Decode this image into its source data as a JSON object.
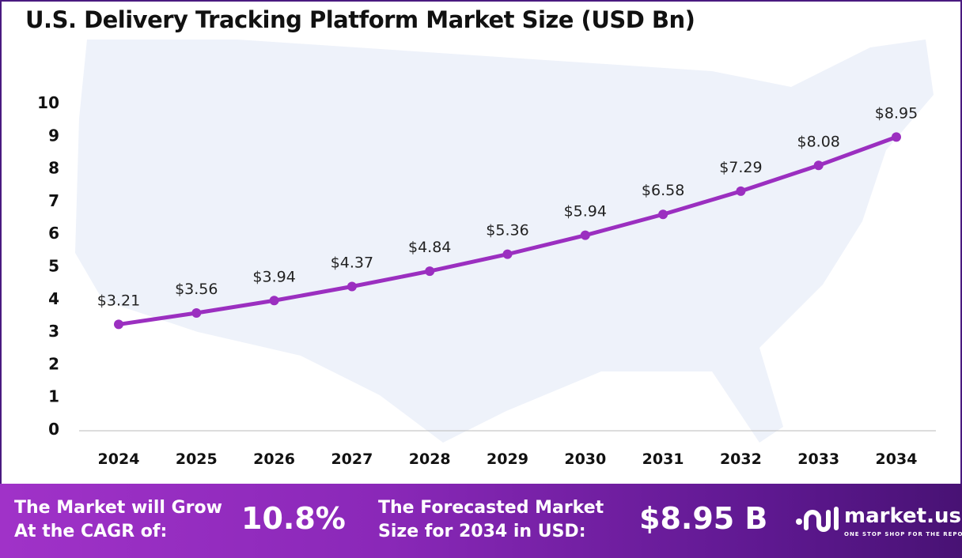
{
  "chart_data": {
    "type": "line",
    "title": "U.S. Delivery Tracking Platform Market Size (USD Bn)",
    "categories": [
      "2024",
      "2025",
      "2026",
      "2027",
      "2028",
      "2029",
      "2030",
      "2031",
      "2032",
      "2033",
      "2034"
    ],
    "values": [
      3.21,
      3.56,
      3.94,
      4.37,
      4.84,
      5.36,
      5.94,
      6.58,
      7.29,
      8.08,
      8.95
    ],
    "data_labels": [
      "$3.21",
      "$3.56",
      "$3.94",
      "$4.37",
      "$4.84",
      "$5.36",
      "$5.94",
      "$6.58",
      "$7.29",
      "$8.08",
      "$8.95"
    ],
    "yticks": [
      "0",
      "1",
      "2",
      "3",
      "4",
      "5",
      "6",
      "7",
      "8",
      "9",
      "10"
    ],
    "ylim": [
      0,
      10
    ],
    "xlabel": "",
    "ylabel": "",
    "grid": false,
    "line_color": "#9b2fc0"
  },
  "footer": {
    "cagr_label_1": "The Market will Grow",
    "cagr_label_2": "At the CAGR of:",
    "cagr_value": "10.8%",
    "forecast_label_1": "The Forecasted Market",
    "forecast_label_2": "Size for 2034 in USD:",
    "forecast_value": "$8.95 B",
    "brand_name": "market.us",
    "brand_tagline": "ONE STOP SHOP FOR THE REPORTS"
  }
}
